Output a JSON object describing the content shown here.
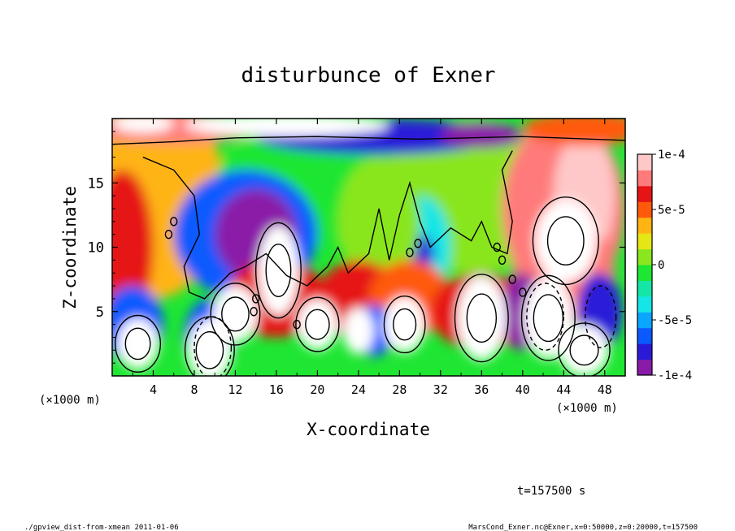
{
  "chart_data": {
    "type": "heatmap",
    "title": "disturbunce of Exner",
    "xlabel": "X-coordinate",
    "ylabel": "Z-coordinate",
    "x_unit": "(×1000 m)",
    "x_unit_right": "(×1000 m)",
    "x_ticks": [
      4,
      8,
      12,
      16,
      20,
      24,
      28,
      32,
      36,
      40,
      44,
      48
    ],
    "y_ticks": [
      5,
      10,
      15
    ],
    "xlim": [
      0,
      50
    ],
    "ylim": [
      0,
      20
    ],
    "colorbar": {
      "range": [
        -0.0001,
        0.0001
      ],
      "tick_labels": [
        "1e-4",
        "5e-5",
        "0",
        "-5e-5",
        "-1e-4"
      ],
      "tick_values": [
        0.0001,
        5e-05,
        0,
        -5e-05,
        -0.0001
      ],
      "colors": [
        "#8a1aa8",
        "#2a1ad8",
        "#0a5aff",
        "#0aa6ff",
        "#14e6e6",
        "#14e6a8",
        "#1ee632",
        "#8ae61e",
        "#e6e614",
        "#ffb414",
        "#ff5a0a",
        "#e61414",
        "#ff7a7a",
        "#ffc8c8"
      ]
    },
    "features": [
      {
        "kind": "high",
        "x": 44,
        "z": 12,
        "value": 0.00012
      },
      {
        "kind": "high",
        "x": 16.5,
        "z": 8,
        "value": 0.00011
      },
      {
        "kind": "low",
        "x": 13,
        "z": 11,
        "value": -0.0001
      },
      {
        "kind": "low",
        "x": 30,
        "z": 9.5,
        "value": -6e-05
      },
      {
        "kind": "high",
        "x": 0.5,
        "z": 10,
        "value": 6e-05
      },
      {
        "kind": "low",
        "x": 26,
        "z": 18.5,
        "value": -9e-05
      }
    ]
  },
  "footer": {
    "time": "t=157500 s",
    "script": "./gpview_dist-from-xmean  2011-01-06",
    "source": "MarsCond_Exner.nc@Exner,x=0:50000,z=0:20000,t=157500"
  }
}
